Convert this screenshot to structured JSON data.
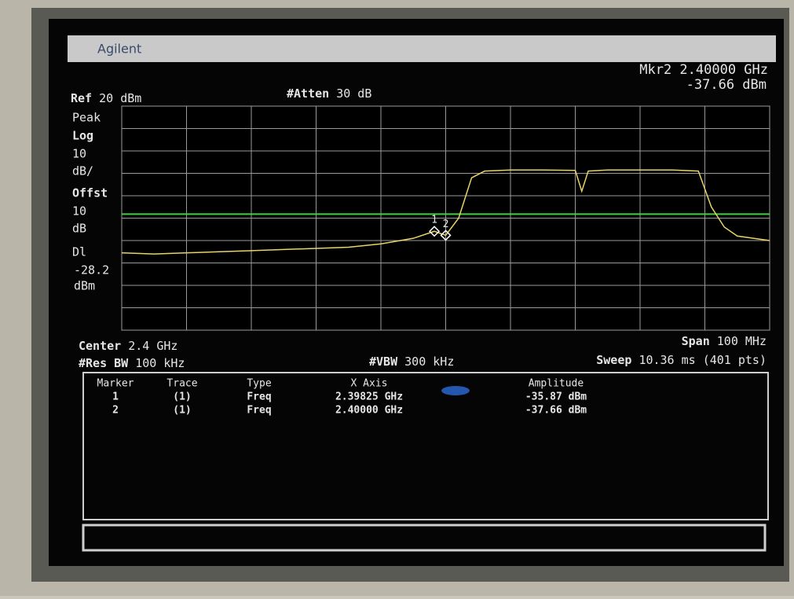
{
  "header": {
    "brand": "Agilent",
    "marker_readout": "Mkr2  2.40000 GHz",
    "marker_amplitude": "-37.66 dBm"
  },
  "settings": {
    "ref_label": "Ref",
    "ref_value": "20 dBm",
    "atten_label": "#Atten",
    "atten_value": "30 dB",
    "left_labels": [
      "Peak",
      "Log",
      "10",
      "dB/",
      "Offst",
      "10",
      "dB",
      "Dl"
    ],
    "display_unit": "dBm",
    "center_label": "Center",
    "center_value": "2.4 GHz",
    "span_label": "Span",
    "span_value": "100 MHz",
    "rbw_label": "#Res BW",
    "rbw_value": "100 kHz",
    "vbw_label": "#VBW",
    "vbw_value": "300 kHz",
    "sweep_label": "Sweep",
    "sweep_value": "10.36 ms (401 pts)"
  },
  "marker_table": {
    "columns": [
      "Marker",
      "Trace",
      "Type",
      "X Axis",
      "Amplitude"
    ],
    "rows": [
      [
        "1",
        "(1)",
        "Freq",
        "2.39825 GHz",
        "-35.87 dBm"
      ],
      [
        "2",
        "(1)",
        "Freq",
        "2.40000 GHz",
        "-37.66 dBm"
      ]
    ]
  },
  "chart_data": {
    "type": "line",
    "xlim": [
      2.35,
      2.45
    ],
    "ylim": [
      -80,
      20
    ],
    "xticks": [
      2.35,
      2.36,
      2.37,
      2.38,
      2.39,
      2.4,
      2.41,
      2.42,
      2.43,
      2.44,
      2.45
    ],
    "yticks": [
      -80,
      -70,
      -60,
      -50,
      -40,
      -30,
      -20,
      -10,
      0,
      10,
      20
    ],
    "grid": true,
    "display_line": -28.2,
    "display_line_color": "#3fd23f",
    "series": [
      {
        "color": "#e8d36a",
        "x": [
          2.35,
          2.355,
          2.36,
          2.365,
          2.37,
          2.375,
          2.38,
          2.385,
          2.39,
          2.395,
          2.39825,
          2.4,
          2.402,
          2.404,
          2.406,
          2.41,
          2.415,
          2.42,
          2.421,
          2.422,
          2.425,
          2.43,
          2.435,
          2.439,
          2.441,
          2.443,
          2.445,
          2.45
        ],
        "values": [
          -45.5,
          -46,
          -45.5,
          -45,
          -44.5,
          -44,
          -43.5,
          -43,
          -41.5,
          -39,
          -35.87,
          -37.66,
          -30,
          -12,
          -9,
          -8.5,
          -8.5,
          -8.7,
          -18,
          -9,
          -8.5,
          -8.5,
          -8.5,
          -9,
          -25,
          -34,
          -38,
          -40
        ]
      }
    ],
    "marker_indices": [
      10,
      11
    ]
  }
}
